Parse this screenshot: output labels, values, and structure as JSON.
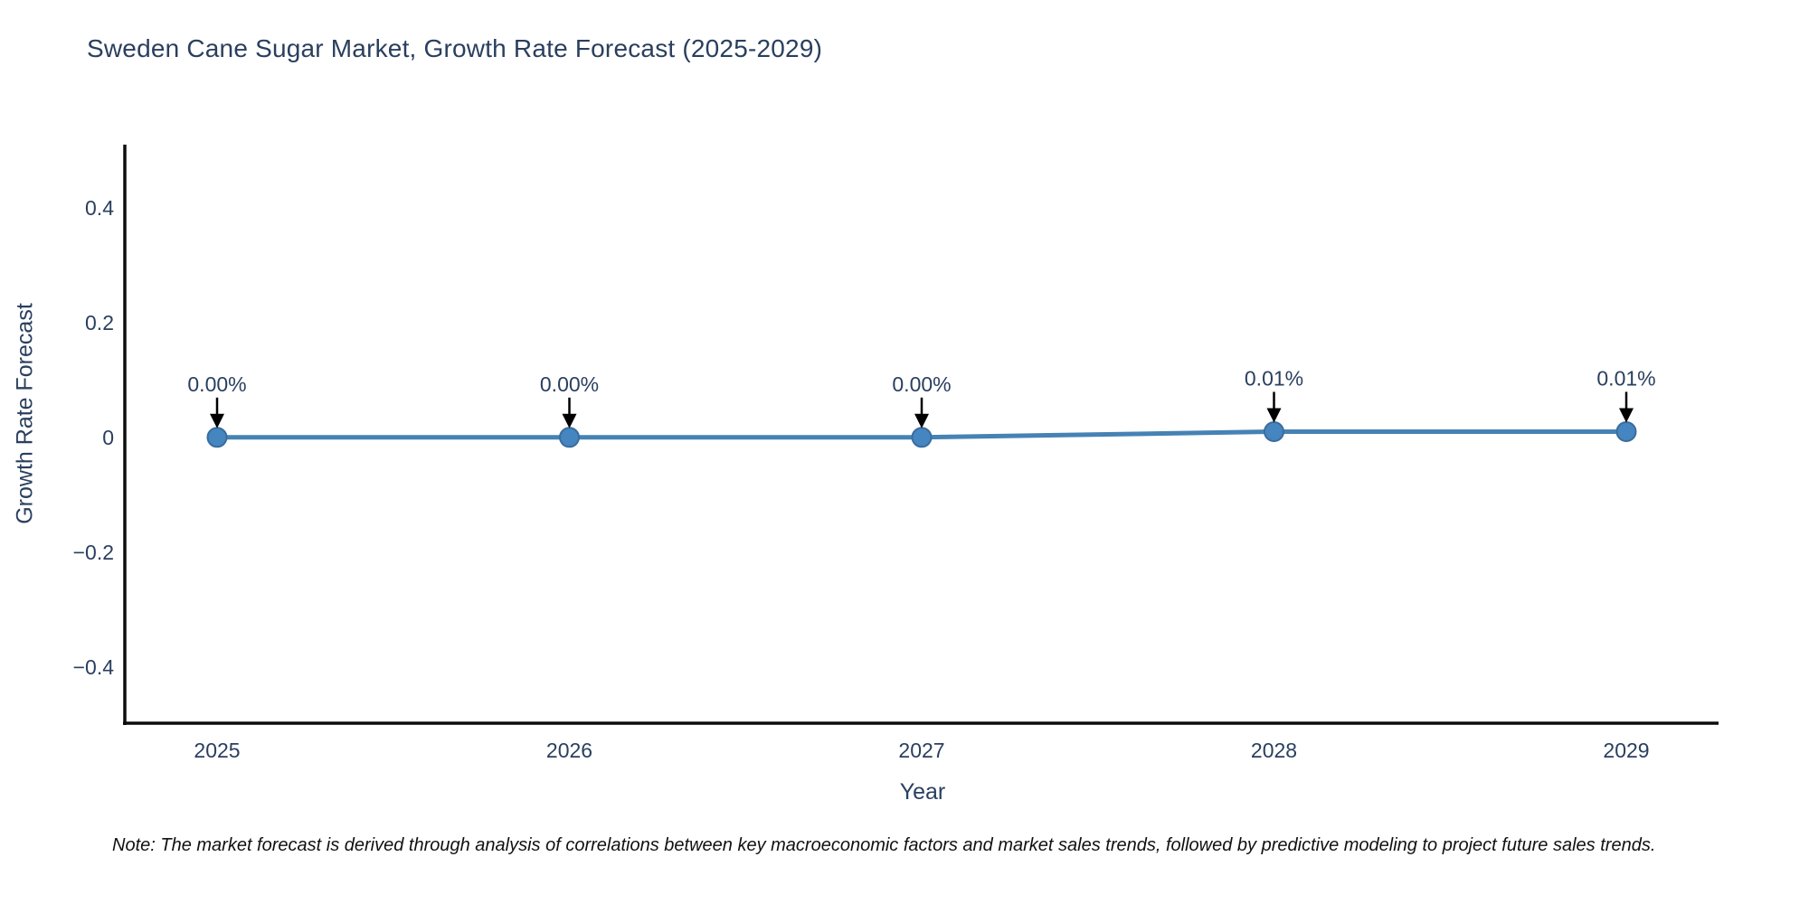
{
  "page": {
    "background": "#ffffff"
  },
  "chart": {
    "title": "Sweden Cane Sugar Market, Growth Rate Forecast (2025-2029)",
    "xlabel": "Year",
    "ylabel": "Growth Rate Forecast",
    "note": "Note: The market forecast is derived through analysis of correlations between key macroeconomic factors and market sales trends, followed by predictive modeling to project future sales trends.",
    "colors": {
      "line": "#4682b4",
      "marker_fill": "#4585c0",
      "marker_edge": "#3a6d9e",
      "axis": "#0d0d0d",
      "tick_text": "#2a3f5f",
      "annotation_text": "#2a3f5f",
      "arrow": "#000000"
    }
  },
  "chart_data": {
    "type": "line",
    "categories": [
      "2025",
      "2026",
      "2027",
      "2028",
      "2029"
    ],
    "values": [
      0.0,
      0.0,
      0.0,
      0.01,
      0.01
    ],
    "point_labels": [
      "0.00%",
      "0.00%",
      "0.00%",
      "0.01%",
      "0.01%"
    ],
    "series_name": "Growth Rate Forecast",
    "title": "Sweden Cane Sugar Market, Growth Rate Forecast (2025-2029)",
    "xlabel": "Year",
    "ylabel": "Growth Rate Forecast",
    "ylim": [
      -0.498,
      0.51
    ],
    "yticks": [
      {
        "value": 0.4,
        "label": "0.4"
      },
      {
        "value": 0.2,
        "label": "0.2"
      },
      {
        "value": 0.0,
        "label": "0"
      },
      {
        "value": -0.2,
        "label": "−0.2"
      },
      {
        "value": -0.4,
        "label": "−0.4"
      }
    ],
    "grid": false,
    "legend": false,
    "marker": "circle",
    "annotations_have_arrows": true
  }
}
